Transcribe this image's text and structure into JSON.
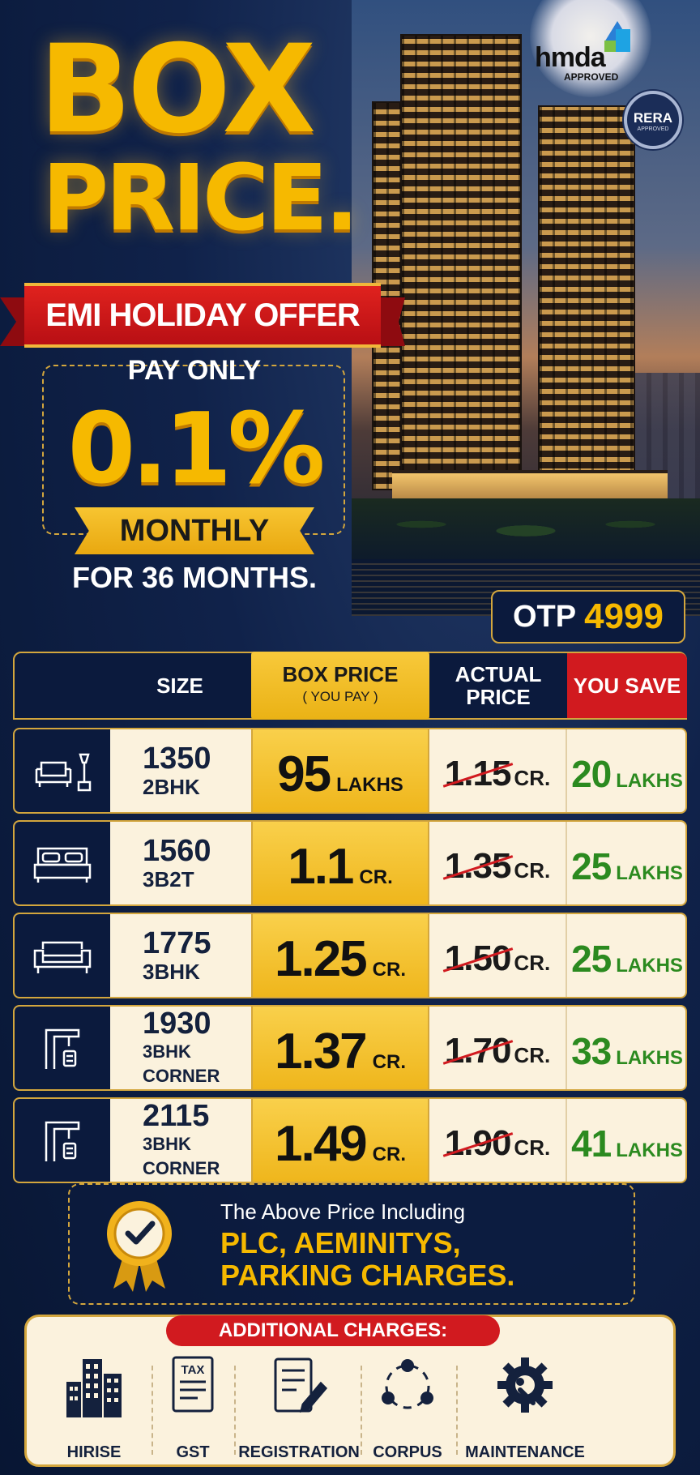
{
  "hero": {
    "title_line1": "BOX",
    "title_line2": "PRICE.",
    "ribbon": "EMI HOLIDAY OFFER",
    "pay_only": "PAY ONLY",
    "percent": "0.1%",
    "monthly": "MONTHLY",
    "duration": "FOR 36 MONTHS."
  },
  "logos": {
    "hmda": "hmda",
    "hmda_sub": "APPROVED",
    "rera": "RERA",
    "rera_sub": "APPROVED"
  },
  "otp": {
    "label": "OTP",
    "value": "4999"
  },
  "table": {
    "headers": {
      "size": "SIZE",
      "box_price": "BOX PRICE",
      "box_price_sub": "( YOU PAY )",
      "actual_line1": "ACTUAL",
      "actual_line2": "PRICE",
      "you_save": "YOU SAVE"
    },
    "rows": [
      {
        "icon": "sofa-lamp-icon",
        "sqft": "1350",
        "type": "2BHK",
        "box": "95",
        "box_unit": "LAKHS",
        "actual": "1.15",
        "actual_unit": "CR.",
        "save": "20",
        "save_unit": "LAKHS"
      },
      {
        "icon": "bed-icon",
        "sqft": "1560",
        "type": "3B2T",
        "box": "1.1",
        "box_unit": "CR.",
        "actual": "1.35",
        "actual_unit": "CR.",
        "save": "25",
        "save_unit": "LAKHS"
      },
      {
        "icon": "sofa-icon",
        "sqft": "1775",
        "type": "3BHK",
        "box": "1.25",
        "box_unit": "CR.",
        "actual": "1.50",
        "actual_unit": "CR.",
        "save": "25",
        "save_unit": "LAKHS"
      },
      {
        "icon": "corner-plan-icon",
        "sqft": "1930",
        "type": "3BHK CORNER",
        "box": "1.37",
        "box_unit": "CR.",
        "actual": "1.70",
        "actual_unit": "CR.",
        "save": "33",
        "save_unit": "LAKHS"
      },
      {
        "icon": "corner-plan-icon",
        "sqft": "2115",
        "type": "3BHK CORNER",
        "box": "1.49",
        "box_unit": "CR.",
        "actual": "1.90",
        "actual_unit": "CR.",
        "save": "41",
        "save_unit": "LAKHS"
      }
    ]
  },
  "note": {
    "line1": "The Above Price Including",
    "line2": "PLC, AEMINITYS,",
    "line3": "PARKING CHARGES."
  },
  "additional": {
    "title": "ADDITIONAL CHARGES:",
    "items": [
      {
        "label": "HIRISE",
        "icon": "buildings-icon"
      },
      {
        "label": "GST",
        "icon": "tax-document-icon"
      },
      {
        "label": "REGISTRATION",
        "icon": "registration-form-icon"
      },
      {
        "label": "CORPUS",
        "icon": "network-circle-icon"
      },
      {
        "label": "MAINTENANCE",
        "icon": "gear-wrench-icon"
      }
    ],
    "tax_glyph": "TAX"
  },
  "colors": {
    "gold": "#f6b900",
    "navy": "#0b1a3d",
    "red": "#d11a1f",
    "green": "#2b8a1f",
    "cream": "#fbf2dd"
  }
}
